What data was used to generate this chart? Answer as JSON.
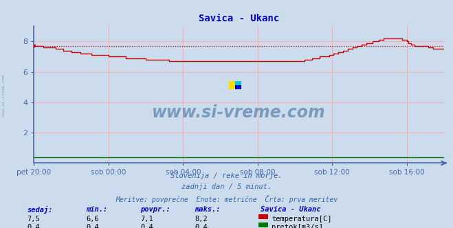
{
  "title": "Savica - Ukanc",
  "title_color": "#0000cc",
  "background_color": "#ccdcec",
  "plot_bg_color": "#ccdcec",
  "grid_color": "#ffaaaa",
  "axis_color": "#4466aa",
  "x_labels": [
    "pet 20:00",
    "sob 00:00",
    "sob 04:00",
    "sob 08:00",
    "sob 12:00",
    "sob 16:00"
  ],
  "x_ticks_norm": [
    0.0,
    0.1818,
    0.3636,
    0.5455,
    0.7273,
    0.9091
  ],
  "ylim": [
    0,
    9
  ],
  "yticks": [
    2,
    4,
    6,
    8
  ],
  "temp_avg": 7.7,
  "temp_color": "#cc0000",
  "flow_color": "#007700",
  "watermark_text": "www.si-vreme.com",
  "watermark_color": "#336699",
  "watermark_alpha": 0.55,
  "sub_text1": "Slovenija / reke in morje.",
  "sub_text2": "zadnji dan / 5 minut.",
  "sub_text3": "Meritve: povprečne  Enote: metrične  Črta: prva meritev",
  "sub_text_color": "#3366aa",
  "table_label_color": "#0000cc",
  "sidebar_text": "www.si-vreme.com",
  "sidebar_color": "#6699bb",
  "headers": [
    "sedaj:",
    "min.:",
    "povpr.:",
    "maks.:"
  ],
  "values_temp": [
    "7,5",
    "6,6",
    "7,1",
    "8,2"
  ],
  "values_flow": [
    "0,4",
    "0,4",
    "0,4",
    "0,4"
  ],
  "legend_title": "Savica - Ukanc",
  "legend_temp_label": "temperatura[C]",
  "legend_flow_label": "pretok[m3/s]"
}
